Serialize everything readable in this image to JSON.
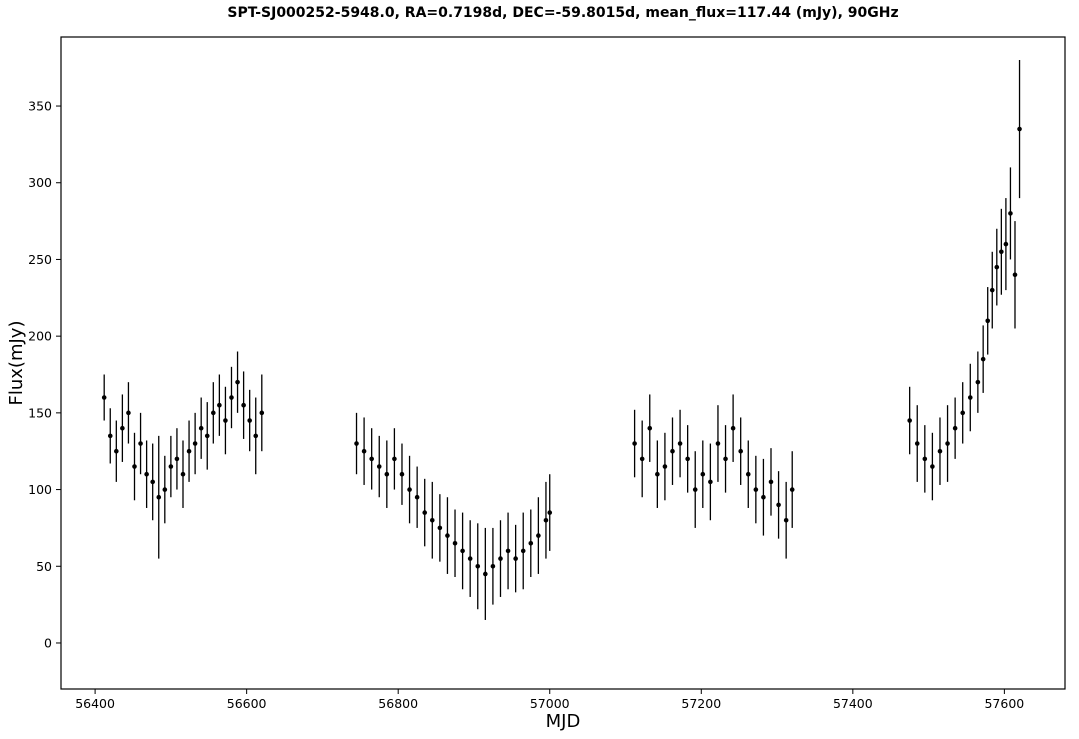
{
  "chart_data": {
    "type": "scatter",
    "title": "SPT-SJ000252-5948.0, RA=0.7198d, DEC=-59.8015d, mean_flux=117.44 (mJy), 90GHz",
    "xlabel": "MJD",
    "ylabel": "Flux(mJy)",
    "xlim": [
      56355,
      57680
    ],
    "ylim": [
      -30,
      395
    ],
    "xticks": [
      56400,
      56600,
      56800,
      57000,
      57200,
      57400,
      57600
    ],
    "yticks": [
      0,
      50,
      100,
      150,
      200,
      250,
      300,
      350
    ],
    "grid": false,
    "marker_color": "#000000",
    "error_bars": true,
    "series": [
      {
        "x": [
          56412,
          56420,
          56428,
          56436,
          56444,
          56452,
          56460,
          56468,
          56476,
          56484,
          56492,
          56500,
          56508,
          56516,
          56524,
          56532,
          56540,
          56548,
          56556,
          56564,
          56572,
          56580,
          56588,
          56596,
          56604,
          56612,
          56620
        ],
        "y": [
          160,
          135,
          125,
          140,
          150,
          115,
          130,
          110,
          105,
          95,
          100,
          115,
          120,
          110,
          125,
          130,
          140,
          135,
          150,
          155,
          145,
          160,
          170,
          155,
          145,
          135,
          150
        ],
        "err": [
          15,
          18,
          20,
          22,
          20,
          22,
          20,
          22,
          25,
          40,
          22,
          20,
          20,
          22,
          20,
          20,
          20,
          22,
          20,
          20,
          22,
          20,
          20,
          22,
          20,
          25,
          25
        ]
      },
      {
        "x": [
          56745,
          56755,
          56765,
          56775,
          56785,
          56795,
          56805,
          56815,
          56825,
          56835,
          56845,
          56855,
          56865,
          56875,
          56885,
          56895,
          56905,
          56915,
          56925,
          56935,
          56945,
          56955,
          56965,
          56975,
          56985,
          56995,
          57000
        ],
        "y": [
          130,
          125,
          120,
          115,
          110,
          120,
          110,
          100,
          95,
          85,
          80,
          75,
          70,
          65,
          60,
          55,
          50,
          45,
          50,
          55,
          60,
          55,
          60,
          65,
          70,
          80,
          85
        ],
        "err": [
          20,
          22,
          20,
          20,
          22,
          20,
          20,
          22,
          20,
          22,
          25,
          22,
          25,
          22,
          25,
          25,
          28,
          30,
          25,
          25,
          25,
          22,
          25,
          22,
          25,
          25,
          25
        ]
      },
      {
        "x": [
          57112,
          57122,
          57132,
          57142,
          57152,
          57162,
          57172,
          57182,
          57192,
          57202,
          57212,
          57222,
          57232,
          57242,
          57252,
          57262,
          57272,
          57282,
          57292,
          57302,
          57312,
          57320
        ],
        "y": [
          130,
          120,
          140,
          110,
          115,
          125,
          130,
          120,
          100,
          110,
          105,
          130,
          120,
          140,
          125,
          110,
          100,
          95,
          105,
          90,
          80,
          100
        ],
        "err": [
          22,
          25,
          22,
          22,
          22,
          22,
          22,
          22,
          25,
          22,
          25,
          25,
          22,
          22,
          22,
          22,
          22,
          25,
          22,
          22,
          25,
          25
        ]
      },
      {
        "x": [
          57475,
          57485,
          57495,
          57505,
          57515,
          57525,
          57535,
          57545,
          57555,
          57565,
          57572,
          57578,
          57584,
          57590,
          57596,
          57602,
          57608,
          57614,
          57620
        ],
        "y": [
          145,
          130,
          120,
          115,
          125,
          130,
          140,
          150,
          160,
          170,
          185,
          210,
          230,
          245,
          255,
          260,
          280,
          240,
          335
        ],
        "err": [
          22,
          25,
          22,
          22,
          22,
          25,
          20,
          20,
          22,
          20,
          22,
          22,
          25,
          25,
          28,
          30,
          30,
          35,
          45
        ]
      }
    ]
  }
}
